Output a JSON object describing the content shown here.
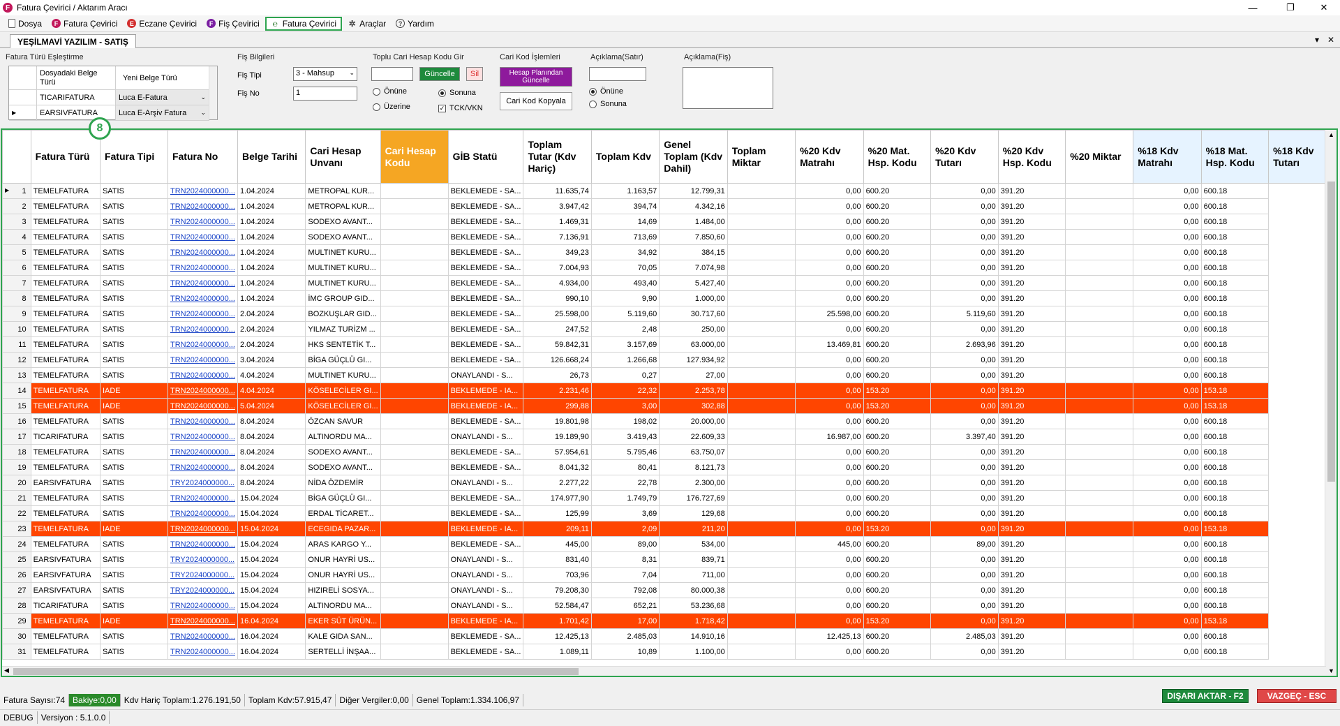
{
  "window": {
    "title": "Fatura Çevirici / Aktarım Aracı",
    "icon_letter": "F",
    "minimize": "—",
    "restore": "❐",
    "close": "✕"
  },
  "menu": [
    {
      "label": "Dosya"
    },
    {
      "label": "Fatura Çevirici"
    },
    {
      "label": "Eczane Çevirici"
    },
    {
      "label": "Fiş Çevirici"
    },
    {
      "label": "Fatura Çevirici"
    },
    {
      "label": "Araçlar"
    },
    {
      "label": "Yardım"
    }
  ],
  "tab": {
    "label": "YEŞİLMAVİ YAZILIM - SATIŞ",
    "pin": "▾",
    "close": "✕"
  },
  "mapping": {
    "title": "Fatura Türü Eşleştirme",
    "col1": "Dosyadaki Belge Türü",
    "col2": "Yeni Belge Türü",
    "rows": [
      {
        "src": "TICARIFATURA",
        "dst": "Luca E-Fatura"
      },
      {
        "src": "EARSIVFATURA",
        "dst": "Luca E-Arşiv Fatura"
      }
    ]
  },
  "fis": {
    "title": "Fiş Bilgileri",
    "tip_label": "Fiş Tipi",
    "tip_value": "3 - Mahsup",
    "no_label": "Fiş No",
    "no_value": "1"
  },
  "toplu": {
    "title": "Toplu Cari Hesap Kodu Gir",
    "update": "Güncelle",
    "delete": "Sil",
    "before": "Önüne",
    "after": "Sonuna",
    "over": "Üzerine",
    "tck": "TCK/VKN"
  },
  "cari": {
    "title": "Cari Kod İşlemleri",
    "plan_update": "Hesap Planından Güncelle",
    "copy": "Cari Kod Kopyala"
  },
  "aciklama_satir": {
    "title": "Açıklama(Satır)",
    "before": "Önüne",
    "after": "Sonuna"
  },
  "aciklama_fis": {
    "title": "Açıklama(Fiş)"
  },
  "badge": "8",
  "columns": [
    "Fatura Türü",
    "Fatura Tipi",
    "Fatura No",
    "Belge Tarihi",
    "Cari Hesap Unvanı",
    "Cari Hesap Kodu",
    "GİB Statü",
    "Toplam Tutar (Kdv Hariç)",
    "Toplam Kdv",
    "Genel Toplam (Kdv Dahil)",
    "Toplam Miktar",
    "%20 Kdv Matrahı",
    "%20 Mat. Hsp. Kodu",
    "%20 Kdv Tutarı",
    "%20 Kdv Hsp. Kodu",
    "%20 Miktar",
    "%18 Kdv Matrahı",
    "%18 Mat. Hsp. Kodu",
    "%18 Kdv Tutarı"
  ],
  "rows": [
    [
      "1",
      "TEMELFATURA",
      "SATIS",
      "TRN2024000000...",
      "1.04.2024",
      "METROPAL KUR...",
      "",
      "BEKLEMEDE - SA...",
      "11.635,74",
      "1.163,57",
      "12.799,31",
      "",
      "0,00",
      "600.20",
      "0,00",
      "391.20",
      "",
      "0,00",
      "600.18"
    ],
    [
      "2",
      "TEMELFATURA",
      "SATIS",
      "TRN2024000000...",
      "1.04.2024",
      "METROPAL KUR...",
      "",
      "BEKLEMEDE - SA...",
      "3.947,42",
      "394,74",
      "4.342,16",
      "",
      "0,00",
      "600.20",
      "0,00",
      "391.20",
      "",
      "0,00",
      "600.18"
    ],
    [
      "3",
      "TEMELFATURA",
      "SATIS",
      "TRN2024000000...",
      "1.04.2024",
      "SODEXO AVANT...",
      "",
      "BEKLEMEDE - SA...",
      "1.469,31",
      "14,69",
      "1.484,00",
      "",
      "0,00",
      "600.20",
      "0,00",
      "391.20",
      "",
      "0,00",
      "600.18"
    ],
    [
      "4",
      "TEMELFATURA",
      "SATIS",
      "TRN2024000000...",
      "1.04.2024",
      "SODEXO AVANT...",
      "",
      "BEKLEMEDE - SA...",
      "7.136,91",
      "713,69",
      "7.850,60",
      "",
      "0,00",
      "600.20",
      "0,00",
      "391.20",
      "",
      "0,00",
      "600.18"
    ],
    [
      "5",
      "TEMELFATURA",
      "SATIS",
      "TRN2024000000...",
      "1.04.2024",
      "MULTINET KURU...",
      "",
      "BEKLEMEDE - SA...",
      "349,23",
      "34,92",
      "384,15",
      "",
      "0,00",
      "600.20",
      "0,00",
      "391.20",
      "",
      "0,00",
      "600.18"
    ],
    [
      "6",
      "TEMELFATURA",
      "SATIS",
      "TRN2024000000...",
      "1.04.2024",
      "MULTINET KURU...",
      "",
      "BEKLEMEDE - SA...",
      "7.004,93",
      "70,05",
      "7.074,98",
      "",
      "0,00",
      "600.20",
      "0,00",
      "391.20",
      "",
      "0,00",
      "600.18"
    ],
    [
      "7",
      "TEMELFATURA",
      "SATIS",
      "TRN2024000000...",
      "1.04.2024",
      "MULTINET KURU...",
      "",
      "BEKLEMEDE - SA...",
      "4.934,00",
      "493,40",
      "5.427,40",
      "",
      "0,00",
      "600.20",
      "0,00",
      "391.20",
      "",
      "0,00",
      "600.18"
    ],
    [
      "8",
      "TEMELFATURA",
      "SATIS",
      "TRN2024000000...",
      "1.04.2024",
      "İMC GROUP GID...",
      "",
      "BEKLEMEDE - SA...",
      "990,10",
      "9,90",
      "1.000,00",
      "",
      "0,00",
      "600.20",
      "0,00",
      "391.20",
      "",
      "0,00",
      "600.18"
    ],
    [
      "9",
      "TEMELFATURA",
      "SATIS",
      "TRN2024000000...",
      "2.04.2024",
      "BOZKUŞLAR GID...",
      "",
      "BEKLEMEDE - SA...",
      "25.598,00",
      "5.119,60",
      "30.717,60",
      "",
      "25.598,00",
      "600.20",
      "5.119,60",
      "391.20",
      "",
      "0,00",
      "600.18"
    ],
    [
      "10",
      "TEMELFATURA",
      "SATIS",
      "TRN2024000000...",
      "2.04.2024",
      "YILMAZ TURİZM ...",
      "",
      "BEKLEMEDE - SA...",
      "247,52",
      "2,48",
      "250,00",
      "",
      "0,00",
      "600.20",
      "0,00",
      "391.20",
      "",
      "0,00",
      "600.18"
    ],
    [
      "11",
      "TEMELFATURA",
      "SATIS",
      "TRN2024000000...",
      "2.04.2024",
      "HKS SENTETİK T...",
      "",
      "BEKLEMEDE - SA...",
      "59.842,31",
      "3.157,69",
      "63.000,00",
      "",
      "13.469,81",
      "600.20",
      "2.693,96",
      "391.20",
      "",
      "0,00",
      "600.18"
    ],
    [
      "12",
      "TEMELFATURA",
      "SATIS",
      "TRN2024000000...",
      "3.04.2024",
      "BİGA GÜÇLÜ GI...",
      "",
      "BEKLEMEDE - SA...",
      "126.668,24",
      "1.266,68",
      "127.934,92",
      "",
      "0,00",
      "600.20",
      "0,00",
      "391.20",
      "",
      "0,00",
      "600.18"
    ],
    [
      "13",
      "TEMELFATURA",
      "SATIS",
      "TRN2024000000...",
      "4.04.2024",
      "MULTINET KURU...",
      "",
      "ONAYLANDI - S...",
      "26,73",
      "0,27",
      "27,00",
      "",
      "0,00",
      "600.20",
      "0,00",
      "391.20",
      "",
      "0,00",
      "600.18"
    ],
    [
      "14",
      "TEMELFATURA",
      "IADE",
      "TRN2024000000...",
      "4.04.2024",
      "KÖSELECİLER GI...",
      "",
      "BEKLEMEDE - IA...",
      "2.231,46",
      "22,32",
      "2.253,78",
      "",
      "0,00",
      "153.20",
      "0,00",
      "391.20",
      "",
      "0,00",
      "153.18"
    ],
    [
      "15",
      "TEMELFATURA",
      "IADE",
      "TRN2024000000...",
      "5.04.2024",
      "KÖSELECİLER GI...",
      "",
      "BEKLEMEDE - IA...",
      "299,88",
      "3,00",
      "302,88",
      "",
      "0,00",
      "153.20",
      "0,00",
      "391.20",
      "",
      "0,00",
      "153.18"
    ],
    [
      "16",
      "TEMELFATURA",
      "SATIS",
      "TRN2024000000...",
      "8.04.2024",
      "ÖZCAN SAVUR",
      "",
      "BEKLEMEDE - SA...",
      "19.801,98",
      "198,02",
      "20.000,00",
      "",
      "0,00",
      "600.20",
      "0,00",
      "391.20",
      "",
      "0,00",
      "600.18"
    ],
    [
      "17",
      "TICARIFATURA",
      "SATIS",
      "TRN2024000000...",
      "8.04.2024",
      "ALTINORDU MA...",
      "",
      "ONAYLANDI - S...",
      "19.189,90",
      "3.419,43",
      "22.609,33",
      "",
      "16.987,00",
      "600.20",
      "3.397,40",
      "391.20",
      "",
      "0,00",
      "600.18"
    ],
    [
      "18",
      "TEMELFATURA",
      "SATIS",
      "TRN2024000000...",
      "8.04.2024",
      "SODEXO AVANT...",
      "",
      "BEKLEMEDE - SA...",
      "57.954,61",
      "5.795,46",
      "63.750,07",
      "",
      "0,00",
      "600.20",
      "0,00",
      "391.20",
      "",
      "0,00",
      "600.18"
    ],
    [
      "19",
      "TEMELFATURA",
      "SATIS",
      "TRN2024000000...",
      "8.04.2024",
      "SODEXO AVANT...",
      "",
      "BEKLEMEDE - SA...",
      "8.041,32",
      "80,41",
      "8.121,73",
      "",
      "0,00",
      "600.20",
      "0,00",
      "391.20",
      "",
      "0,00",
      "600.18"
    ],
    [
      "20",
      "EARSIVFATURA",
      "SATIS",
      "TRY2024000000...",
      "8.04.2024",
      "NİDA ÖZDEMİR",
      "",
      "ONAYLANDI - S...",
      "2.277,22",
      "22,78",
      "2.300,00",
      "",
      "0,00",
      "600.20",
      "0,00",
      "391.20",
      "",
      "0,00",
      "600.18"
    ],
    [
      "21",
      "TEMELFATURA",
      "SATIS",
      "TRN2024000000...",
      "15.04.2024",
      "BİGA GÜÇLÜ GI...",
      "",
      "BEKLEMEDE - SA...",
      "174.977,90",
      "1.749,79",
      "176.727,69",
      "",
      "0,00",
      "600.20",
      "0,00",
      "391.20",
      "",
      "0,00",
      "600.18"
    ],
    [
      "22",
      "TEMELFATURA",
      "SATIS",
      "TRN2024000000...",
      "15.04.2024",
      "ERDAL TİCARET...",
      "",
      "BEKLEMEDE - SA...",
      "125,99",
      "3,69",
      "129,68",
      "",
      "0,00",
      "600.20",
      "0,00",
      "391.20",
      "",
      "0,00",
      "600.18"
    ],
    [
      "23",
      "TEMELFATURA",
      "IADE",
      "TRN2024000000...",
      "15.04.2024",
      "ECEGIDA PAZAR...",
      "",
      "BEKLEMEDE - IA...",
      "209,11",
      "2,09",
      "211,20",
      "",
      "0,00",
      "153.20",
      "0,00",
      "391.20",
      "",
      "0,00",
      "153.18"
    ],
    [
      "24",
      "TEMELFATURA",
      "SATIS",
      "TRN2024000000...",
      "15.04.2024",
      "ARAS KARGO Y...",
      "",
      "BEKLEMEDE - SA...",
      "445,00",
      "89,00",
      "534,00",
      "",
      "445,00",
      "600.20",
      "89,00",
      "391.20",
      "",
      "0,00",
      "600.18"
    ],
    [
      "25",
      "EARSIVFATURA",
      "SATIS",
      "TRY2024000000...",
      "15.04.2024",
      "ONUR HAYRİ US...",
      "",
      "ONAYLANDI - S...",
      "831,40",
      "8,31",
      "839,71",
      "",
      "0,00",
      "600.20",
      "0,00",
      "391.20",
      "",
      "0,00",
      "600.18"
    ],
    [
      "26",
      "EARSIVFATURA",
      "SATIS",
      "TRY2024000000...",
      "15.04.2024",
      "ONUR HAYRİ US...",
      "",
      "ONAYLANDI - S...",
      "703,96",
      "7,04",
      "711,00",
      "",
      "0,00",
      "600.20",
      "0,00",
      "391.20",
      "",
      "0,00",
      "600.18"
    ],
    [
      "27",
      "EARSIVFATURA",
      "SATIS",
      "TRY2024000000...",
      "15.04.2024",
      "HIZIRELİ SOSYA...",
      "",
      "ONAYLANDI - S...",
      "79.208,30",
      "792,08",
      "80.000,38",
      "",
      "0,00",
      "600.20",
      "0,00",
      "391.20",
      "",
      "0,00",
      "600.18"
    ],
    [
      "28",
      "TICARIFATURA",
      "SATIS",
      "TRN2024000000...",
      "15.04.2024",
      "ALTINORDU MA...",
      "",
      "ONAYLANDI - S...",
      "52.584,47",
      "652,21",
      "53.236,68",
      "",
      "0,00",
      "600.20",
      "0,00",
      "391.20",
      "",
      "0,00",
      "600.18"
    ],
    [
      "29",
      "TEMELFATURA",
      "IADE",
      "TRN2024000000...",
      "16.04.2024",
      "EKER SÜT ÜRÜN...",
      "",
      "BEKLEMEDE - IA...",
      "1.701,42",
      "17,00",
      "1.718,42",
      "",
      "0,00",
      "153.20",
      "0,00",
      "391.20",
      "",
      "0,00",
      "153.18"
    ],
    [
      "30",
      "TEMELFATURA",
      "SATIS",
      "TRN2024000000...",
      "16.04.2024",
      "KALE GIDA SAN...",
      "",
      "BEKLEMEDE - SA...",
      "12.425,13",
      "2.485,03",
      "14.910,16",
      "",
      "12.425,13",
      "600.20",
      "2.485,03",
      "391.20",
      "",
      "0,00",
      "600.18"
    ],
    [
      "31",
      "TEMELFATURA",
      "SATIS",
      "TRN2024000000...",
      "16.04.2024",
      "SERTELLİ İNŞAA...",
      "",
      "BEKLEMEDE - SA...",
      "1.089,11",
      "10,89",
      "1.100,00",
      "",
      "0,00",
      "600.20",
      "0,00",
      "391.20",
      "",
      "0,00",
      "600.18"
    ]
  ],
  "status": {
    "fatura_sayisi": "Fatura Sayısı:74",
    "bakiye": "Bakiye:0,00",
    "kdv_haric": "Kdv Hariç Toplam:1.276.191,50",
    "toplam_kdv": "Toplam Kdv:57.915,47",
    "diger": "Diğer Vergiler:0,00",
    "genel": "Genel Toplam:1.334.106,97"
  },
  "export_btn": "DIŞARI AKTAR - F2",
  "cancel_btn": "VAZGEÇ - ESC",
  "debug": "DEBUG",
  "version": "Versiyon : 5.1.0.0",
  "colors": {
    "iade_row": "#ff4500",
    "accent_green": "#2ea44f",
    "header_orange": "#f5a623",
    "export_btn": "#1e8a3c",
    "cancel_btn": "#e04848"
  }
}
